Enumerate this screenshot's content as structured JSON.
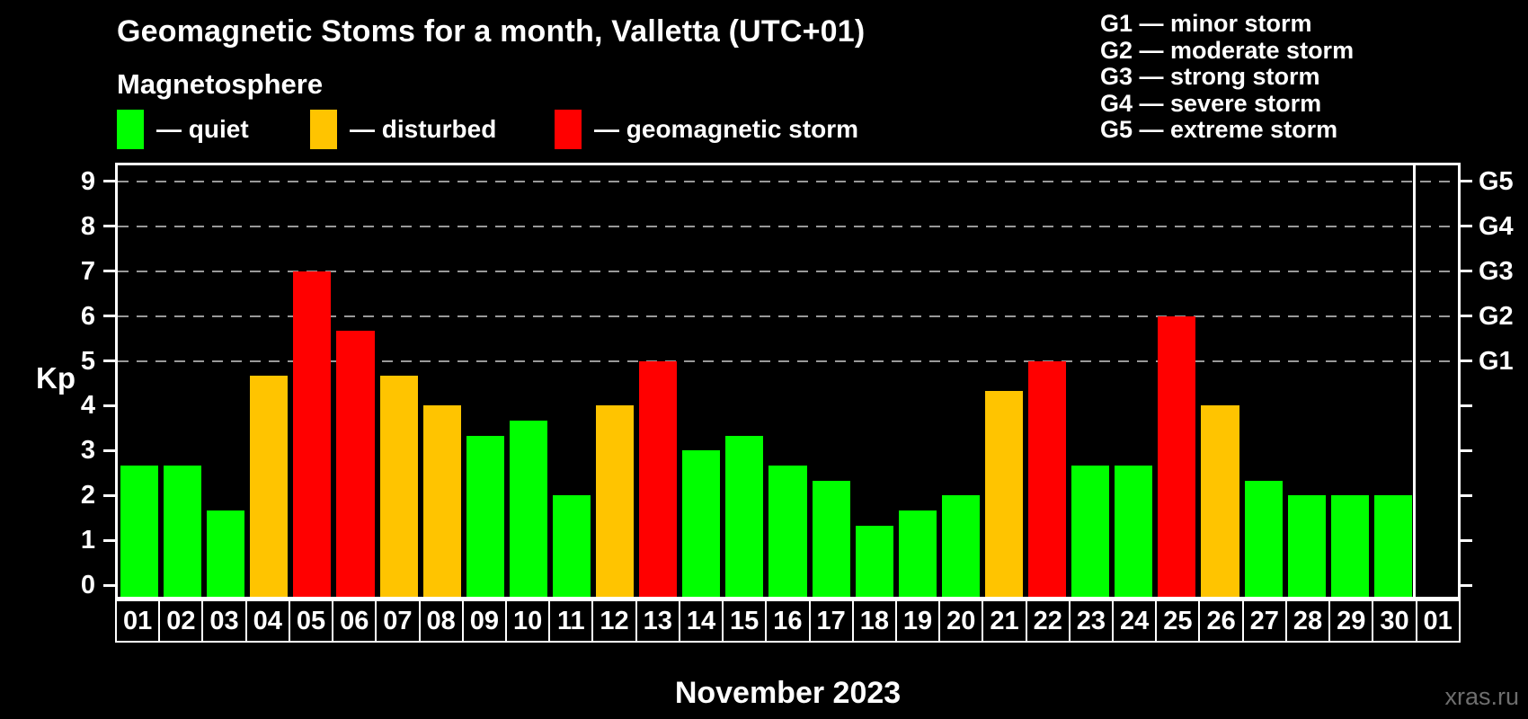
{
  "header": {
    "title": "Geomagnetic Stoms for a month, Valletta (UTC+01)",
    "subtitle": "Magnetosphere",
    "legend": [
      {
        "key": "quiet",
        "label": "— quiet",
        "color": "#00ff00"
      },
      {
        "key": "disturbed",
        "label": "— disturbed",
        "color": "#ffc400"
      },
      {
        "key": "storm",
        "label": "— geomagnetic storm",
        "color": "#ff0000"
      }
    ],
    "g_scale_legend": [
      "G1 — minor storm",
      "G2 — moderate storm",
      "G3 — strong storm",
      "G4 — severe storm",
      "G5 — extreme storm"
    ]
  },
  "chart_data": {
    "type": "bar",
    "title": "Geomagnetic Stoms for a month, Valletta (UTC+01)",
    "ylabel": "Kp",
    "xlabel": "November 2023",
    "ylim": [
      0,
      9.4
    ],
    "yticks": [
      0,
      1,
      2,
      3,
      4,
      5,
      6,
      7,
      8,
      9
    ],
    "grid_levels": [
      5,
      6,
      7,
      8,
      9
    ],
    "grid_on": true,
    "right_axis": [
      {
        "level": 5,
        "label": "G1"
      },
      {
        "level": 6,
        "label": "G2"
      },
      {
        "level": 7,
        "label": "G3"
      },
      {
        "level": 8,
        "label": "G4"
      },
      {
        "level": 9,
        "label": "G5"
      }
    ],
    "days": [
      {
        "label": "01",
        "kp": 2.67,
        "status": "quiet"
      },
      {
        "label": "02",
        "kp": 2.67,
        "status": "quiet"
      },
      {
        "label": "03",
        "kp": 1.67,
        "status": "quiet"
      },
      {
        "label": "04",
        "kp": 4.67,
        "status": "disturbed"
      },
      {
        "label": "05",
        "kp": 7.0,
        "status": "storm"
      },
      {
        "label": "06",
        "kp": 5.67,
        "status": "storm"
      },
      {
        "label": "07",
        "kp": 4.67,
        "status": "disturbed"
      },
      {
        "label": "08",
        "kp": 4.0,
        "status": "disturbed"
      },
      {
        "label": "09",
        "kp": 3.33,
        "status": "quiet"
      },
      {
        "label": "10",
        "kp": 3.67,
        "status": "quiet"
      },
      {
        "label": "11",
        "kp": 2.0,
        "status": "quiet"
      },
      {
        "label": "12",
        "kp": 4.0,
        "status": "disturbed"
      },
      {
        "label": "13",
        "kp": 5.0,
        "status": "storm"
      },
      {
        "label": "14",
        "kp": 3.0,
        "status": "quiet"
      },
      {
        "label": "15",
        "kp": 3.33,
        "status": "quiet"
      },
      {
        "label": "16",
        "kp": 2.67,
        "status": "quiet"
      },
      {
        "label": "17",
        "kp": 2.33,
        "status": "quiet"
      },
      {
        "label": "18",
        "kp": 1.33,
        "status": "quiet"
      },
      {
        "label": "19",
        "kp": 1.67,
        "status": "quiet"
      },
      {
        "label": "20",
        "kp": 2.0,
        "status": "quiet"
      },
      {
        "label": "21",
        "kp": 4.33,
        "status": "disturbed"
      },
      {
        "label": "22",
        "kp": 5.0,
        "status": "storm"
      },
      {
        "label": "23",
        "kp": 2.67,
        "status": "quiet"
      },
      {
        "label": "24",
        "kp": 2.67,
        "status": "quiet"
      },
      {
        "label": "25",
        "kp": 6.0,
        "status": "storm"
      },
      {
        "label": "26",
        "kp": 4.0,
        "status": "disturbed"
      },
      {
        "label": "27",
        "kp": 2.33,
        "status": "quiet"
      },
      {
        "label": "28",
        "kp": 2.0,
        "status": "quiet"
      },
      {
        "label": "29",
        "kp": 2.0,
        "status": "quiet"
      },
      {
        "label": "30",
        "kp": 2.0,
        "status": "quiet"
      },
      {
        "label": "01",
        "kp": null,
        "status": "none"
      }
    ],
    "legend_position": "top-left"
  },
  "footer": {
    "caption": "November 2023",
    "watermark": "xras.ru"
  },
  "colors": {
    "quiet": "#00ff00",
    "disturbed": "#ffc400",
    "storm": "#ff0000",
    "background": "#000000",
    "grid": "#999999",
    "axis": "#ffffff",
    "watermark": "#6e6e6e"
  }
}
